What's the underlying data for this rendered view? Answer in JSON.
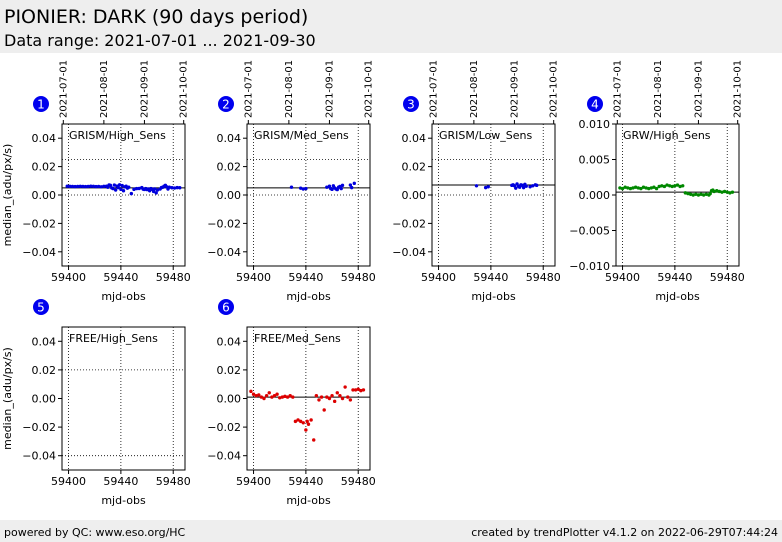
{
  "header": {
    "title": "PIONIER: DARK (90 days period)",
    "subtitle": "Data range: 2021-07-01 ... 2021-09-30"
  },
  "footer": {
    "left": "powered by QC: www.eso.org/HC",
    "right": "created by trendPlotter v4.1.2 on 2022-06-29T07:44:24"
  },
  "chart_data": [
    {
      "type": "scatter",
      "number": "1",
      "label": "GRISM/High_Sens",
      "xlabel": "mjd-obs",
      "ylabel": "median_(adu/px/s)",
      "xlim": [
        59395,
        59489
      ],
      "ylim": [
        -0.05,
        0.05
      ],
      "xticks": [
        59400,
        59440,
        59480
      ],
      "yticks": [
        -0.04,
        -0.02,
        0.0,
        0.02,
        0.04
      ],
      "ytick_labels": [
        "−0.04",
        "−0.02",
        "0.00",
        "0.02",
        "0.04"
      ],
      "date_ticks": [
        {
          "label": "2021-07-01",
          "mjd": 59396
        },
        {
          "label": "2021-08-01",
          "mjd": 59427
        },
        {
          "label": "2021-09-01",
          "mjd": 59458
        },
        {
          "label": "2021-10-01",
          "mjd": 59488
        }
      ],
      "ref_line": 0.005,
      "upper_limit": 0.025,
      "lower_limit": 0.0,
      "color": "#0000dd",
      "x": [
        59399,
        59401,
        59403,
        59405,
        59407,
        59409,
        59411,
        59413,
        59415,
        59417,
        59419,
        59421,
        59423,
        59425,
        59427,
        59429,
        59430,
        59431,
        59432,
        59433,
        59434,
        59435,
        59436,
        59437,
        59438,
        59439,
        59440,
        59441,
        59442,
        59443,
        59444,
        59445,
        59446,
        59448,
        59450,
        59452,
        59454,
        59456,
        59457,
        59458,
        59459,
        59460,
        59461,
        59462,
        59463,
        59464,
        59465,
        59466,
        59467,
        59468,
        59470,
        59471,
        59472,
        59473,
        59474,
        59475,
        59476,
        59477,
        59479,
        59481,
        59483,
        59485
      ],
      "y": [
        0.0062,
        0.0061,
        0.006,
        0.0059,
        0.006,
        0.0061,
        0.006,
        0.0059,
        0.006,
        0.0062,
        0.0061,
        0.0059,
        0.006,
        0.0058,
        0.0061,
        0.0062,
        0.0055,
        0.0071,
        0.0068,
        0.005,
        0.0045,
        0.007,
        0.0035,
        0.0063,
        0.0052,
        0.0072,
        0.004,
        0.0066,
        0.003,
        0.0058,
        0.0062,
        0.0048,
        0.0055,
        0.001,
        0.004,
        0.0045,
        0.0046,
        0.0052,
        0.0041,
        0.0039,
        0.0045,
        0.0038,
        0.0042,
        0.003,
        0.0045,
        0.004,
        0.0025,
        0.0043,
        0.0015,
        0.0035,
        0.0042,
        0.0052,
        0.0055,
        0.0062,
        0.0068,
        0.0058,
        0.0042,
        0.0055,
        0.0051,
        0.0049,
        0.0052,
        0.0051
      ]
    },
    {
      "type": "scatter",
      "number": "2",
      "label": "GRISM/Med_Sens",
      "xlabel": "mjd-obs",
      "ylabel": "",
      "xlim": [
        59395,
        59489
      ],
      "ylim": [
        -0.05,
        0.05
      ],
      "xticks": [
        59400,
        59440,
        59480
      ],
      "yticks": [
        -0.04,
        -0.02,
        0.0,
        0.02,
        0.04
      ],
      "ytick_labels": [
        "−0.04",
        "−0.02",
        "0.00",
        "0.02",
        "0.04"
      ],
      "date_ticks": [
        {
          "label": "2021-07-01",
          "mjd": 59396
        },
        {
          "label": "2021-08-01",
          "mjd": 59427
        },
        {
          "label": "2021-09-01",
          "mjd": 59458
        },
        {
          "label": "2021-10-01",
          "mjd": 59488
        }
      ],
      "ref_line": 0.005,
      "upper_limit": 0.025,
      "lower_limit": 0.0,
      "color": "#0000dd",
      "x": [
        59429,
        59436,
        59438,
        59440,
        59456,
        59458,
        59459,
        59460,
        59461,
        59462,
        59463,
        59464,
        59465,
        59466,
        59467,
        59468,
        59474,
        59475,
        59477
      ],
      "y": [
        0.0055,
        0.0048,
        0.0042,
        0.0045,
        0.0055,
        0.0062,
        0.0045,
        0.004,
        0.0065,
        0.005,
        0.0042,
        0.0038,
        0.0055,
        0.006,
        0.0045,
        0.0068,
        0.007,
        0.0052,
        0.0082
      ]
    },
    {
      "type": "scatter",
      "number": "3",
      "label": "GRISM/Low_Sens",
      "xlabel": "mjd-obs",
      "ylabel": "",
      "xlim": [
        59395,
        59489
      ],
      "ylim": [
        -0.05,
        0.05
      ],
      "xticks": [
        59400,
        59440,
        59480
      ],
      "yticks": [
        -0.04,
        -0.02,
        0.0,
        0.02,
        0.04
      ],
      "ytick_labels": [
        "−0.04",
        "−0.02",
        "0.00",
        "0.02",
        "0.04"
      ],
      "date_ticks": [
        {
          "label": "2021-07-01",
          "mjd": 59396
        },
        {
          "label": "2021-08-01",
          "mjd": 59427
        },
        {
          "label": "2021-09-01",
          "mjd": 59458
        },
        {
          "label": "2021-10-01",
          "mjd": 59488
        }
      ],
      "ref_line": 0.007,
      "upper_limit": 0.025,
      "lower_limit": 0.0,
      "color": "#0000dd",
      "x": [
        59429,
        59436,
        59438,
        59456,
        59457,
        59458,
        59459,
        59460,
        59461,
        59462,
        59463,
        59464,
        59465,
        59466,
        59467,
        59470,
        59472,
        59474,
        59475
      ],
      "y": [
        0.0065,
        0.0052,
        0.0058,
        0.0068,
        0.0072,
        0.0065,
        0.0048,
        0.0078,
        0.0062,
        0.0055,
        0.0072,
        0.0068,
        0.0052,
        0.0075,
        0.0062,
        0.0058,
        0.0065,
        0.0072,
        0.0068
      ]
    },
    {
      "type": "scatter",
      "number": "4",
      "label": "GRW/High_Sens",
      "xlabel": "mjd-obs",
      "ylabel": "",
      "xlim": [
        59395,
        59489
      ],
      "ylim": [
        -0.01,
        0.01
      ],
      "xticks": [
        59400,
        59440,
        59480
      ],
      "yticks": [
        -0.01,
        -0.005,
        0.0,
        0.005,
        0.01
      ],
      "ytick_labels": [
        "−0.010",
        "−0.005",
        "0.000",
        "0.005",
        "0.010"
      ],
      "date_ticks": [
        {
          "label": "2021-07-01",
          "mjd": 59396
        },
        {
          "label": "2021-08-01",
          "mjd": 59427
        },
        {
          "label": "2021-09-01",
          "mjd": 59458
        },
        {
          "label": "2021-10-01",
          "mjd": 59488
        }
      ],
      "ref_line": 0.0004,
      "upper_limit": null,
      "lower_limit": null,
      "color": "#008800",
      "x": [
        59398,
        59400,
        59402,
        59404,
        59406,
        59408,
        59410,
        59412,
        59414,
        59416,
        59418,
        59420,
        59422,
        59424,
        59426,
        59428,
        59430,
        59432,
        59434,
        59436,
        59438,
        59440,
        59442,
        59444,
        59446,
        59448,
        59450,
        59452,
        59454,
        59456,
        59458,
        59460,
        59462,
        59464,
        59466,
        59467,
        59468,
        59469,
        59470,
        59472,
        59474,
        59476,
        59478,
        59480,
        59482,
        59484
      ],
      "y": [
        0.001,
        0.0009,
        0.0011,
        0.001,
        0.0009,
        0.001,
        0.0011,
        0.001,
        0.0009,
        0.0011,
        0.001,
        0.0009,
        0.001,
        0.0011,
        0.0009,
        0.0012,
        0.0013,
        0.0012,
        0.0014,
        0.0013,
        0.0012,
        0.0013,
        0.0014,
        0.0012,
        0.0013,
        0.0003,
        0.0002,
        0.0001,
        0.0,
        0.0001,
        0.0,
        0.0001,
        0.0,
        0.0001,
        0.0,
        0.0002,
        0.0006,
        0.0007,
        0.0005,
        0.0006,
        0.0005,
        0.0004,
        0.0005,
        0.0004,
        0.0003,
        0.0004
      ]
    },
    {
      "type": "scatter",
      "number": "5",
      "label": "FREE/High_Sens",
      "xlabel": "mjd-obs",
      "ylabel": "median_(adu/px/s)",
      "xlim": [
        59395,
        59489
      ],
      "ylim": [
        -0.05,
        0.05
      ],
      "xticks": [
        59400,
        59440,
        59480
      ],
      "yticks": [
        -0.04,
        -0.02,
        0.0,
        0.02,
        0.04
      ],
      "ytick_labels": [
        "−0.04",
        "−0.02",
        "0.00",
        "0.02",
        "0.04"
      ],
      "date_ticks": [],
      "ref_line": null,
      "upper_limit": 0.02,
      "lower_limit": -0.04,
      "color": "#dd0000",
      "x": [],
      "y": []
    },
    {
      "type": "scatter",
      "number": "6",
      "label": "FREE/Med_Sens",
      "xlabel": "mjd-obs",
      "ylabel": "",
      "xlim": [
        59395,
        59489
      ],
      "ylim": [
        -0.05,
        0.05
      ],
      "xticks": [
        59400,
        59440,
        59480
      ],
      "yticks": [
        -0.04,
        -0.02,
        0.0,
        0.02,
        0.04
      ],
      "ytick_labels": [
        "−0.04",
        "−0.02",
        "0.00",
        "0.02",
        "0.04"
      ],
      "date_ticks": [],
      "ref_line": 0.001,
      "upper_limit": null,
      "lower_limit": null,
      "color": "#dd0000",
      "x": [
        59398,
        59400,
        59402,
        59404,
        59406,
        59408,
        59410,
        59412,
        59414,
        59416,
        59418,
        59420,
        59422,
        59424,
        59426,
        59428,
        59430,
        59432,
        59434,
        59436,
        59438,
        59440,
        59441,
        59442,
        59444,
        59446,
        59448,
        59450,
        59452,
        59454,
        59456,
        59458,
        59460,
        59462,
        59464,
        59466,
        59468,
        59470,
        59472,
        59474,
        59476,
        59478,
        59480,
        59482,
        59484
      ],
      "y": [
        0.005,
        0.003,
        0.002,
        0.0025,
        0.001,
        0.0,
        0.002,
        0.004,
        0.001,
        0.002,
        0.003,
        0.0005,
        0.001,
        0.0015,
        0.001,
        0.002,
        0.001,
        -0.016,
        -0.015,
        -0.016,
        -0.017,
        -0.022,
        -0.016,
        -0.018,
        -0.015,
        -0.029,
        0.002,
        -0.001,
        0.001,
        -0.008,
        0.001,
        0.0,
        0.002,
        -0.002,
        0.004,
        0.002,
        0.0,
        0.008,
        0.001,
        -0.001,
        0.006,
        0.006,
        0.0065,
        0.0055,
        0.006
      ]
    }
  ]
}
